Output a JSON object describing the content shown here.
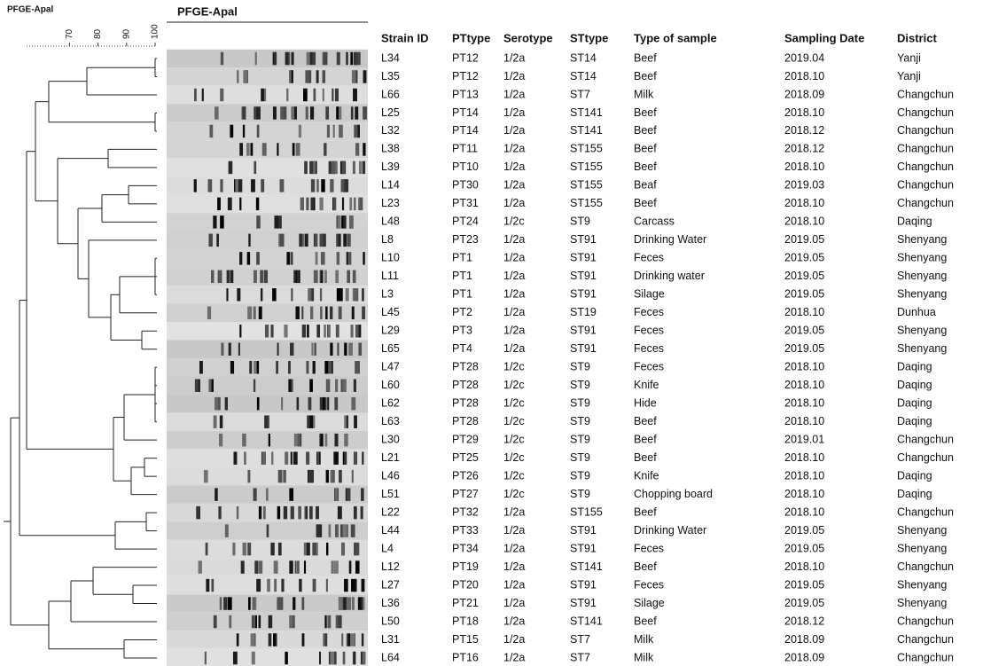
{
  "left_label": "PFGE-Apal",
  "gel_label": "PFGE-Apal",
  "scale": {
    "xlim": [
      55,
      100
    ],
    "ticks": [
      70,
      80,
      90,
      100
    ]
  },
  "table": {
    "columns": [
      "Strain ID",
      "PTtype",
      "Serotype",
      "STtype",
      "Type of sample",
      "Sampling Date",
      "District"
    ],
    "rows": [
      [
        "L34",
        "PT12",
        "1/2a",
        "ST14",
        "Beef",
        "2019.04",
        "Yanji"
      ],
      [
        "L35",
        "PT12",
        "1/2a",
        "ST14",
        "Beef",
        "2018.10",
        "Yanji"
      ],
      [
        "L66",
        "PT13",
        "1/2a",
        "ST7",
        "Milk",
        "2018.09",
        "Changchun"
      ],
      [
        "L25",
        "PT14",
        "1/2a",
        "ST141",
        "Beef",
        "2018.10",
        "Changchun"
      ],
      [
        "L32",
        "PT14",
        "1/2a",
        "ST141",
        "Beef",
        "2018.12",
        "Changchun"
      ],
      [
        "L38",
        "PT11",
        "1/2a",
        "ST155",
        "Beef",
        "2018.12",
        "Changchun"
      ],
      [
        "L39",
        "PT10",
        "1/2a",
        "ST155",
        "Beef",
        "2018.10",
        "Changchun"
      ],
      [
        "L14",
        "PT30",
        "1/2a",
        "ST155",
        "Beaf",
        "2019.03",
        "Changchun"
      ],
      [
        "L23",
        "PT31",
        "1/2a",
        "ST155",
        "Beef",
        "2018.10",
        "Changchun"
      ],
      [
        "L48",
        "PT24",
        "1/2c",
        "ST9",
        "Carcass",
        "2018.10",
        "Daqing"
      ],
      [
        "L8",
        "PT23",
        "1/2a",
        "ST91",
        "Drinking Water",
        "2019.05",
        "Shenyang"
      ],
      [
        "L10",
        "PT1",
        "1/2a",
        "ST91",
        "Feces",
        "2019.05",
        "Shenyang"
      ],
      [
        "L11",
        "PT1",
        "1/2a",
        "ST91",
        "Drinking water",
        "2019.05",
        "Shenyang"
      ],
      [
        "L3",
        "PT1",
        "1/2a",
        "ST91",
        "Silage",
        "2019.05",
        "Shenyang"
      ],
      [
        "L45",
        "PT2",
        "1/2a",
        "ST19",
        "Feces",
        "2018.10",
        "Dunhua"
      ],
      [
        "L29",
        "PT3",
        "1/2a",
        "ST91",
        "Feces",
        "2019.05",
        "Shenyang"
      ],
      [
        "L65",
        "PT4",
        "1/2a",
        "ST91",
        "Feces",
        "2019.05",
        "Shenyang"
      ],
      [
        "L47",
        "PT28",
        "1/2c",
        "ST9",
        "Feces",
        "2018.10",
        "Daqing"
      ],
      [
        "L60",
        "PT28",
        "1/2c",
        "ST9",
        "Knife",
        "2018.10",
        "Daqing"
      ],
      [
        "L62",
        "PT28",
        "1/2c",
        "ST9",
        "Hide",
        "2018.10",
        "Daqing"
      ],
      [
        "L63",
        "PT28",
        "1/2c",
        "ST9",
        "Beef",
        "2018.10",
        "Daqing"
      ],
      [
        "L30",
        "PT29",
        "1/2c",
        "ST9",
        "Beef",
        "2019.01",
        "Changchun"
      ],
      [
        "L21",
        "PT25",
        "1/2c",
        "ST9",
        "Beef",
        "2018.10",
        "Changchun"
      ],
      [
        "L46",
        "PT26",
        "1/2c",
        "ST9",
        "Knife",
        "2018.10",
        "Daqing"
      ],
      [
        "L51",
        "PT27",
        "1/2c",
        "ST9",
        "Chopping board",
        "2018.10",
        "Daqing"
      ],
      [
        "L22",
        "PT32",
        "1/2a",
        "ST155",
        "Beef",
        "2018.10",
        "Changchun"
      ],
      [
        "L44",
        "PT33",
        "1/2a",
        "ST91",
        "Drinking Water",
        "2019.05",
        "Shenyang"
      ],
      [
        "L4",
        "PT34",
        "1/2a",
        "ST91",
        "Feces",
        "2019.05",
        "Shenyang"
      ],
      [
        "L12",
        "PT19",
        "1/2a",
        "ST141",
        "Beef",
        "2018.10",
        "Changchun"
      ],
      [
        "L27",
        "PT20",
        "1/2a",
        "ST91",
        "Feces",
        "2019.05",
        "Shenyang"
      ],
      [
        "L36",
        "PT21",
        "1/2a",
        "ST91",
        "Silage",
        "2019.05",
        "Shenyang"
      ],
      [
        "L50",
        "PT18",
        "1/2a",
        "ST141",
        "Beef",
        "2018.12",
        "Changchun"
      ],
      [
        "L31",
        "PT15",
        "1/2a",
        "ST7",
        "Milk",
        "2018.09",
        "Changchun"
      ],
      [
        "L64",
        "PT16",
        "1/2a",
        "ST7",
        "Milk",
        "2018.09",
        "Changchun"
      ]
    ]
  }
}
